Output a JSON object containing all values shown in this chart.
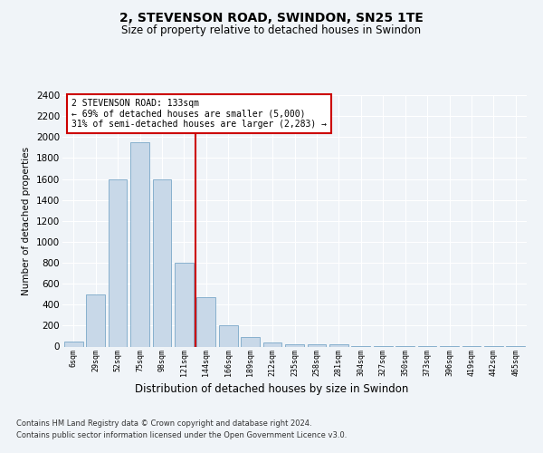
{
  "title": "2, STEVENSON ROAD, SWINDON, SN25 1TE",
  "subtitle": "Size of property relative to detached houses in Swindon",
  "xlabel": "Distribution of detached houses by size in Swindon",
  "ylabel": "Number of detached properties",
  "bar_color": "#c8d8e8",
  "bar_edge_color": "#7aa8c8",
  "categories": [
    "6sqm",
    "29sqm",
    "52sqm",
    "75sqm",
    "98sqm",
    "121sqm",
    "144sqm",
    "166sqm",
    "189sqm",
    "212sqm",
    "235sqm",
    "258sqm",
    "281sqm",
    "304sqm",
    "327sqm",
    "350sqm",
    "373sqm",
    "396sqm",
    "419sqm",
    "442sqm",
    "465sqm"
  ],
  "values": [
    50,
    500,
    1600,
    1950,
    1600,
    800,
    475,
    200,
    90,
    35,
    25,
    20,
    20,
    5,
    5,
    5,
    5,
    5,
    5,
    5,
    5
  ],
  "ylim": [
    0,
    2400
  ],
  "yticks": [
    0,
    200,
    400,
    600,
    800,
    1000,
    1200,
    1400,
    1600,
    1800,
    2000,
    2200,
    2400
  ],
  "property_label": "2 STEVENSON ROAD: 133sqm",
  "annotation_line1": "← 69% of detached houses are smaller (5,000)",
  "annotation_line2": "31% of semi-detached houses are larger (2,283) →",
  "vline_pos": 5.5,
  "footnote1": "Contains HM Land Registry data © Crown copyright and database right 2024.",
  "footnote2": "Contains public sector information licensed under the Open Government Licence v3.0.",
  "background_color": "#f0f4f8",
  "plot_bg_color": "#f0f4f8",
  "grid_color": "#ffffff",
  "annotation_box_color": "#ffffff",
  "annotation_box_edge": "#cc0000",
  "vline_color": "#cc0000"
}
